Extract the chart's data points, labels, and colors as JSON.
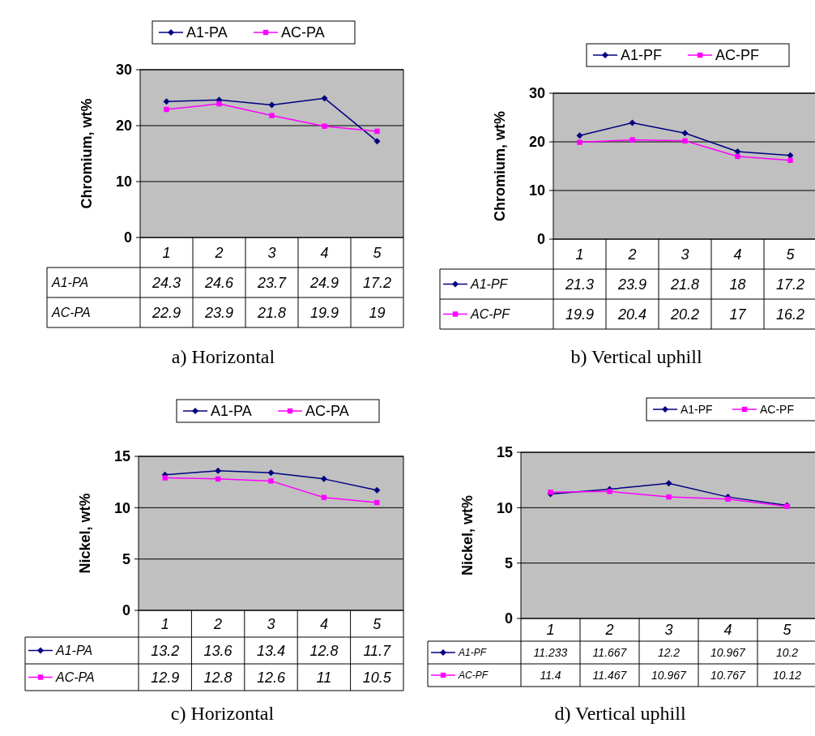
{
  "chart_data": [
    {
      "type": "line",
      "ylabel": "Chromium, wt%",
      "categories": [
        "1",
        "2",
        "3",
        "4",
        "5"
      ],
      "ylim": [
        0,
        30
      ],
      "yticks": [
        0,
        10,
        20,
        30
      ],
      "grid": "y",
      "legend": "top",
      "data_labels": true,
      "annotations": [
        "a) Horizontal"
      ],
      "series": [
        {
          "name": "A1-PA",
          "color": "#000080",
          "marker": "diamond",
          "values": [
            24.3,
            24.6,
            23.7,
            24.9,
            17.2
          ]
        },
        {
          "name": "AC-PA",
          "color": "#ff00ff",
          "marker": "square",
          "values": [
            22.9,
            23.9,
            21.8,
            19.9,
            19
          ]
        }
      ]
    },
    {
      "type": "line",
      "ylabel": "Chromium, wt%",
      "categories": [
        "1",
        "2",
        "3",
        "4",
        "5"
      ],
      "ylim": [
        0,
        30
      ],
      "yticks": [
        0,
        10,
        20,
        30
      ],
      "grid": "y",
      "legend": "top",
      "data_labels": true,
      "annotations": [
        "b) Vertical uphill"
      ],
      "series": [
        {
          "name": "A1-PF",
          "color": "#000080",
          "marker": "diamond",
          "values": [
            21.3,
            23.9,
            21.8,
            18,
            17.2
          ]
        },
        {
          "name": "AC-PF",
          "color": "#ff00ff",
          "marker": "square",
          "values": [
            19.9,
            20.4,
            20.2,
            17,
            16.2
          ]
        }
      ]
    },
    {
      "type": "line",
      "ylabel": "Nickel, wt%",
      "categories": [
        "1",
        "2",
        "3",
        "4",
        "5"
      ],
      "ylim": [
        0,
        15
      ],
      "yticks": [
        0,
        5,
        10,
        15
      ],
      "grid": "y",
      "legend": "top",
      "data_labels": true,
      "annotations": [
        "c) Horizontal"
      ],
      "series": [
        {
          "name": "A1-PA",
          "color": "#000080",
          "marker": "diamond",
          "values": [
            13.2,
            13.6,
            13.4,
            12.8,
            11.7
          ]
        },
        {
          "name": "AC-PA",
          "color": "#ff00ff",
          "marker": "square",
          "values": [
            12.9,
            12.8,
            12.6,
            11,
            10.5
          ]
        }
      ]
    },
    {
      "type": "line",
      "ylabel": "Nickel, wt%",
      "categories": [
        "1",
        "2",
        "3",
        "4",
        "5"
      ],
      "ylim": [
        0,
        15
      ],
      "yticks": [
        0,
        5,
        10,
        15
      ],
      "grid": "y",
      "legend": "top",
      "data_labels": true,
      "annotations": [
        "d) Vertical uphill"
      ],
      "series": [
        {
          "name": "A1-PF",
          "color": "#000080",
          "marker": "diamond",
          "values": [
            11.233,
            11.667,
            12.2,
            10.967,
            10.2
          ]
        },
        {
          "name": "AC-PF",
          "color": "#ff00ff",
          "marker": "square",
          "values": [
            11.4,
            11.467,
            10.967,
            10.767,
            10.12
          ]
        }
      ]
    }
  ]
}
